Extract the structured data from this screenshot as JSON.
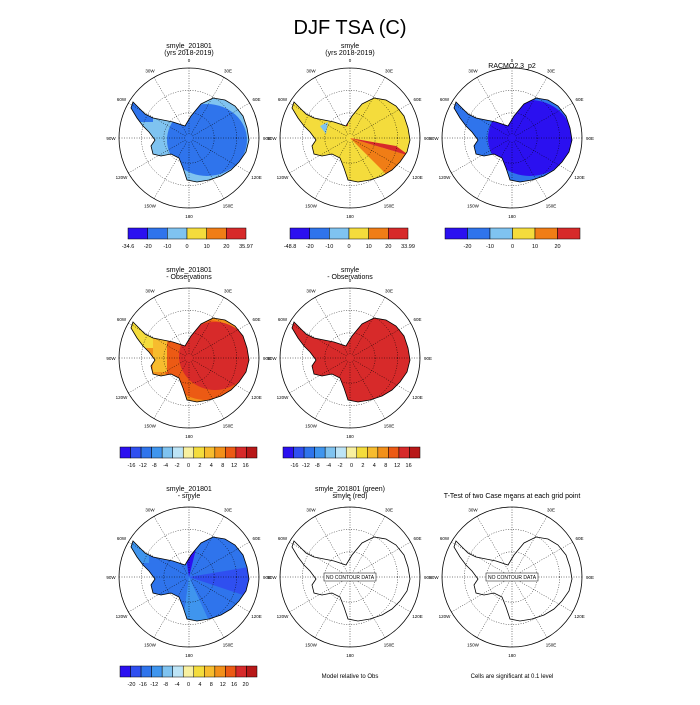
{
  "title": "DJF TSA (C)",
  "colors": {
    "abs": [
      "#2b10f0",
      "#2f74ec",
      "#7fc3f0",
      "#f4dc3c",
      "#f07d16",
      "#d72a2a"
    ],
    "diff": [
      "#2b10f0",
      "#2f4ff0",
      "#2f74ec",
      "#3f95ee",
      "#7fc3f0",
      "#bde4f6",
      "#f8f0a0",
      "#f4dc3c",
      "#f7bc2e",
      "#f2901a",
      "#ec5a14",
      "#d72a2a",
      "#b81818"
    ]
  },
  "chart_data": [
    {
      "type": "heatmap",
      "title": "smyle_201801",
      "subtitle": "(yrs 2018-2019)",
      "longitude_labels": [
        "30W",
        "0",
        "30E",
        "60W",
        "60E",
        "90W",
        "90E",
        "120W",
        "120E",
        "150W",
        "150E",
        "180"
      ],
      "colorbar": {
        "labels": [
          "-34.6",
          "-20",
          "-10",
          "0",
          "10",
          "20",
          "35.97"
        ]
      }
    },
    {
      "type": "heatmap",
      "title": "smyle",
      "subtitle": "(yrs 2018-2019)",
      "longitude_labels": [
        "30W",
        "0",
        "30E",
        "60W",
        "60E",
        "90W",
        "90E",
        "120W",
        "120E",
        "150W",
        "150E",
        "180"
      ],
      "colorbar": {
        "labels": [
          "-48.8",
          "-20",
          "-10",
          "0",
          "10",
          "20",
          "33.99"
        ]
      }
    },
    {
      "type": "heatmap",
      "title": "RACMO2.3_p2",
      "subtitle": "",
      "longitude_labels": [
        "30W",
        "0",
        "30E",
        "60W",
        "60E",
        "90W",
        "90E",
        "120W",
        "120E",
        "150W",
        "150E",
        "180"
      ],
      "colorbar": {
        "labels": [
          "-20",
          "-10",
          "0",
          "10",
          "20"
        ]
      }
    },
    {
      "type": "heatmap",
      "title": "smyle_201801",
      "subtitle": "- Observations",
      "longitude_labels": [
        "30W",
        "0",
        "30E",
        "60W",
        "60E",
        "90W",
        "90E",
        "120W",
        "120E",
        "150W",
        "150E",
        "180"
      ],
      "colorbar": {
        "labels": [
          "-16",
          "-12",
          "-8",
          "-4",
          "-2",
          "0",
          "2",
          "4",
          "8",
          "12",
          "16"
        ]
      }
    },
    {
      "type": "heatmap",
      "title": "smyle",
      "subtitle": "- Observations",
      "longitude_labels": [
        "30W",
        "0",
        "30E",
        "60W",
        "60E",
        "90W",
        "90E",
        "120W",
        "120E",
        "150W",
        "150E",
        "180"
      ],
      "colorbar": {
        "labels": [
          "-16",
          "-12",
          "-8",
          "-4",
          "-2",
          "0",
          "2",
          "4",
          "8",
          "12",
          "16"
        ]
      }
    },
    {
      "type": "heatmap",
      "title": "smyle_201801",
      "subtitle": "- smyle",
      "longitude_labels": [
        "30W",
        "0",
        "30E",
        "60W",
        "60E",
        "90W",
        "90E",
        "120W",
        "120E",
        "150W",
        "150E",
        "180"
      ],
      "colorbar": {
        "labels": [
          "-20",
          "-16",
          "-12",
          "-8",
          "-4",
          "0",
          "4",
          "8",
          "12",
          "16",
          "20"
        ]
      }
    },
    {
      "type": "heatmap",
      "title": "smyle_201801 (green)",
      "subtitle": "smyle (red)",
      "longitude_labels": [
        "30W",
        "0",
        "30E",
        "60W",
        "60E",
        "90W",
        "90E",
        "120W",
        "120E",
        "150W",
        "150E",
        "180"
      ],
      "annotation": "NO CONTOUR DATA",
      "caption": "Model relative to Obs"
    },
    {
      "type": "heatmap",
      "title": "T-Test of two Case means at each grid point",
      "subtitle": "",
      "longitude_labels": [
        "30W",
        "0",
        "30E",
        "60W",
        "60E",
        "90W",
        "90E",
        "120W",
        "120E",
        "150W",
        "150E",
        "180"
      ],
      "annotation": "NO CONTOUR DATA",
      "caption": "Cells are significant at 0.1 level"
    }
  ]
}
